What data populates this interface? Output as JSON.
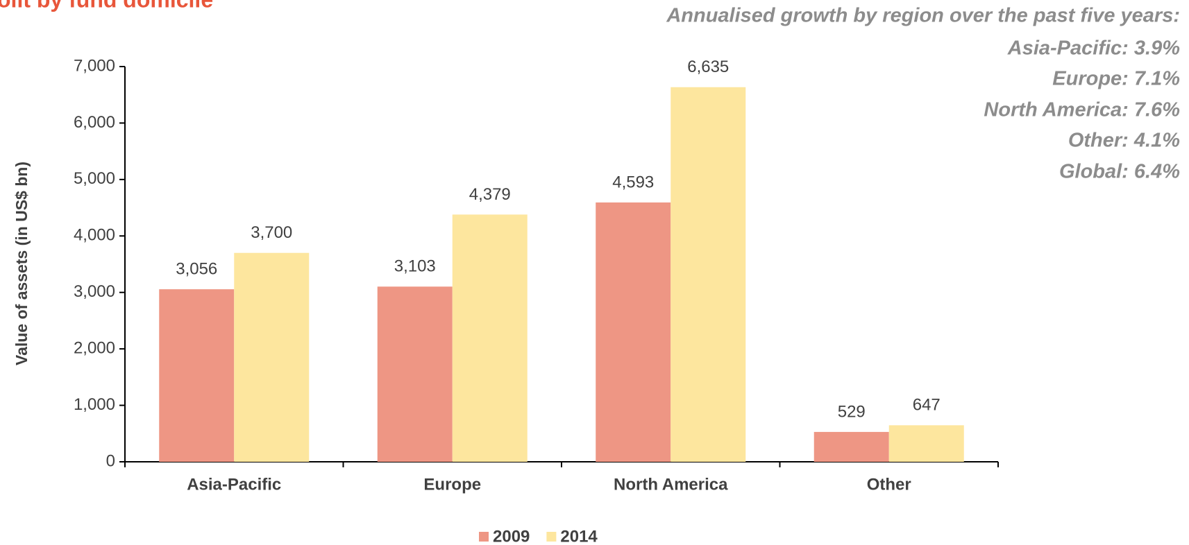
{
  "chart_data": {
    "type": "bar",
    "title": "olit by fund domicile",
    "annotations": [
      "Annualised growth by region over the past five years:",
      "Asia-Pacific: 3.9%",
      "Europe: 7.1%",
      "North America: 7.6%",
      "Other: 4.1%",
      "Global: 6.4%"
    ],
    "y_label": "Value of assets (in US$ bn)",
    "categories": [
      "Asia-Pacific",
      "Europe",
      "North America",
      "Other"
    ],
    "series": [
      {
        "name": "2009",
        "color": "#ee9684",
        "values": [
          3056,
          3103,
          4593,
          529
        ],
        "value_labels": [
          "3,056",
          "3,103",
          "4,593",
          "529"
        ]
      },
      {
        "name": "2014",
        "color": "#fde69e",
        "values": [
          3700,
          4379,
          6635,
          647
        ],
        "value_labels": [
          "3,700",
          "4,379",
          "6,635",
          "647"
        ]
      }
    ],
    "ylim": [
      0,
      7000
    ],
    "yticks": [
      0,
      {
        "value": 1000,
        "label": "1,000"
      },
      {
        "value": 2000,
        "label": "2,000"
      },
      {
        "value": 3000,
        "label": "3,000"
      },
      {
        "value": 4000,
        "label": "4,000"
      },
      {
        "value": 5000,
        "label": "5,000"
      },
      {
        "value": 6000,
        "label": "6,000"
      },
      {
        "value": 7000,
        "label": "7,000"
      }
    ],
    "legend": "bottom",
    "grid": false
  }
}
